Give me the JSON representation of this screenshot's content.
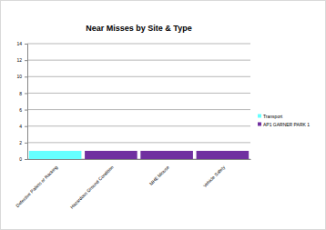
{
  "chart_data": {
    "type": "bar",
    "title": "Near Misses by Site & Type",
    "categories": [
      "Defective Pallets or Racking",
      "Hazardous Ground Condition",
      "MHE Misuse",
      "Vehicle Safety"
    ],
    "series": [
      {
        "name": "Transport",
        "color": "#66ffff",
        "values": [
          1,
          0,
          0,
          0
        ]
      },
      {
        "name": "AP1 GARNER PARK 1",
        "color": "#7030a0",
        "values": [
          0,
          1,
          1,
          1
        ]
      }
    ],
    "stacked": true,
    "ylim": [
      0,
      14
    ],
    "yticks": [
      0,
      2,
      4,
      6,
      8,
      10,
      12,
      14
    ],
    "grid": true,
    "legend": "right"
  }
}
